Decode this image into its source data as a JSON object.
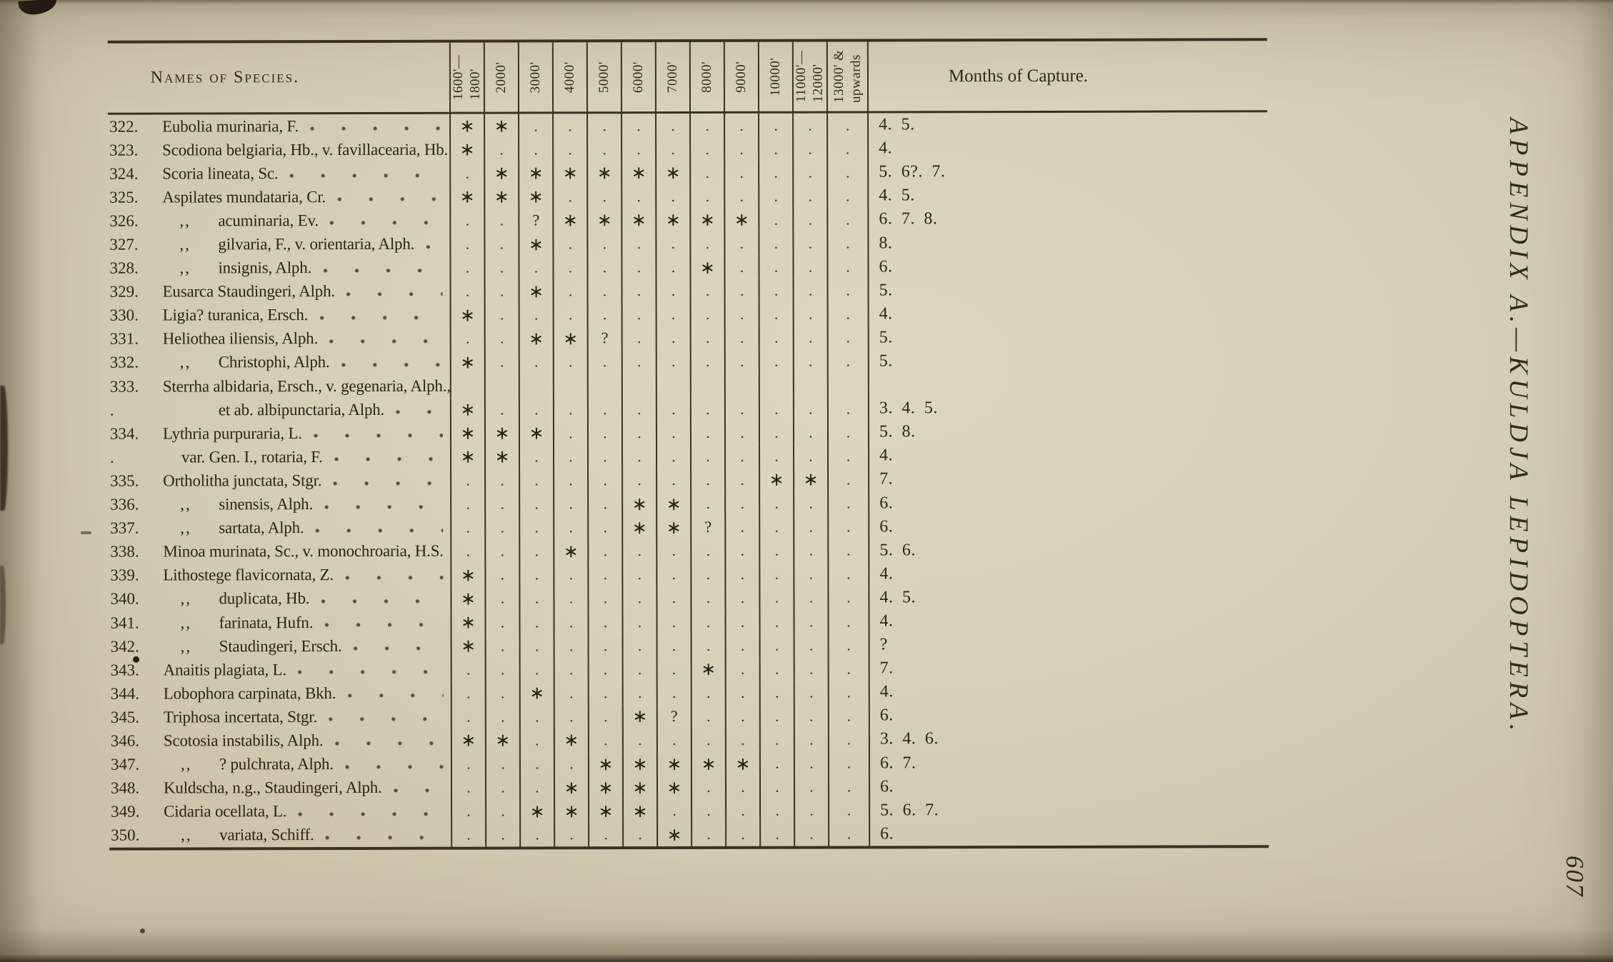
{
  "page": {
    "rotated_title": "APPENDIX A.—KULDJA LEPIDOPTERA.",
    "page_number": "607"
  },
  "table": {
    "name_header": "Names of Species.",
    "months_header": "Months of Capture.",
    "altitude_columns": [
      "1600'—\n1800'",
      "2000'",
      "3000'",
      "4000'",
      "5000'",
      "6000'",
      "7000'",
      "8000'",
      "9000'",
      "10000'",
      "11000'—\n12000'",
      "13000' &\nupwards"
    ],
    "symbols": {
      "star": "∗",
      "dot": ".",
      "question": "?"
    },
    "rows": [
      {
        "num": "322.",
        "prefix": "",
        "indent": 0,
        "name": "Eubolia murinaria, F.",
        "cells": [
          "*",
          "*",
          ".",
          ".",
          ".",
          ".",
          ".",
          ".",
          ".",
          ".",
          ".",
          "."
        ],
        "months": "4. 5."
      },
      {
        "num": "323.",
        "prefix": "",
        "indent": 0,
        "name": "Scodiona belgiaria, Hb., v. favillacearia, Hb.",
        "cells": [
          "*",
          ".",
          ".",
          ".",
          ".",
          ".",
          ".",
          ".",
          ".",
          ".",
          ".",
          "."
        ],
        "months": "4."
      },
      {
        "num": "324.",
        "prefix": "",
        "indent": 0,
        "name": "Scoria lineata, Sc.",
        "cells": [
          ".",
          "*",
          "*",
          "*",
          "*",
          "*",
          "*",
          ".",
          ".",
          ".",
          ".",
          "."
        ],
        "months": "5. 6?. 7."
      },
      {
        "num": "325.",
        "prefix": "",
        "indent": 0,
        "name": "Aspilates mundataria, Cr.",
        "cells": [
          "*",
          "*",
          "*",
          ".",
          ".",
          ".",
          ".",
          ".",
          ".",
          ".",
          ".",
          "."
        ],
        "months": "4. 5."
      },
      {
        "num": "326.",
        "prefix": ",,",
        "indent": 0,
        "name": "acuminaria, Ev.",
        "cells": [
          ".",
          ".",
          "?",
          "*",
          "*",
          "*",
          "*",
          "*",
          "*",
          ".",
          ".",
          "."
        ],
        "months": "6. 7. 8."
      },
      {
        "num": "327.",
        "prefix": ",,",
        "indent": 0,
        "name": "gilvaria, F., v. orientaria, Alph.",
        "cells": [
          ".",
          ".",
          "*",
          ".",
          ".",
          ".",
          ".",
          ".",
          ".",
          ".",
          ".",
          "."
        ],
        "months": "8."
      },
      {
        "num": "328.",
        "prefix": ",,",
        "indent": 0,
        "name": "insignis, Alph.",
        "cells": [
          ".",
          ".",
          ".",
          ".",
          ".",
          ".",
          ".",
          "*",
          ".",
          ".",
          ".",
          "."
        ],
        "months": "6."
      },
      {
        "num": "329.",
        "prefix": "",
        "indent": 0,
        "name": "Eusarca Staudingeri, Alph.",
        "cells": [
          ".",
          ".",
          "*",
          ".",
          ".",
          ".",
          ".",
          ".",
          ".",
          ".",
          ".",
          "."
        ],
        "months": "5."
      },
      {
        "num": "330.",
        "prefix": "",
        "indent": 0,
        "name": "Ligia? turanica, Ersch.",
        "cells": [
          "*",
          ".",
          ".",
          ".",
          ".",
          ".",
          ".",
          ".",
          ".",
          ".",
          ".",
          "."
        ],
        "months": "4."
      },
      {
        "num": "331.",
        "prefix": "",
        "indent": 0,
        "name": "Heliothea iliensis, Alph.",
        "cells": [
          ".",
          ".",
          "*",
          "*",
          "?",
          ".",
          ".",
          ".",
          ".",
          ".",
          ".",
          "."
        ],
        "months": "5."
      },
      {
        "num": "332.",
        "prefix": ",,",
        "indent": 0,
        "name": "Christophi, Alph.",
        "cells": [
          "*",
          ".",
          ".",
          ".",
          ".",
          ".",
          ".",
          ".",
          ".",
          ".",
          ".",
          "."
        ],
        "months": "5."
      },
      {
        "num": "333.",
        "prefix": "",
        "indent": 0,
        "name": "Sterrha albidaria, Ersch., v. gegenaria, Alph.,",
        "cells": [
          "",
          "",
          "",
          "",
          "",
          "",
          "",
          "",
          "",
          "",
          "",
          ""
        ],
        "months": ""
      },
      {
        "num": ".",
        "prefix": "",
        "indent": 2,
        "name": "et ab. albipunctaria, Alph.",
        "cells": [
          "*",
          ".",
          ".",
          ".",
          ".",
          ".",
          ".",
          ".",
          ".",
          ".",
          ".",
          "."
        ],
        "months": "3. 4. 5."
      },
      {
        "num": "334.",
        "prefix": "",
        "indent": 0,
        "name": "Lythria purpuraria, L.",
        "cells": [
          "*",
          "*",
          "*",
          ".",
          ".",
          ".",
          ".",
          ".",
          ".",
          ".",
          ".",
          "."
        ],
        "months": "5. 8."
      },
      {
        "num": ".",
        "prefix": "",
        "indent": 1,
        "name": "var. Gen. I., rotaria, F.",
        "cells": [
          "*",
          "*",
          ".",
          ".",
          ".",
          ".",
          ".",
          ".",
          ".",
          ".",
          ".",
          "."
        ],
        "months": "4."
      },
      {
        "num": "335.",
        "prefix": "",
        "indent": 0,
        "name": "Ortholitha junctata, Stgr.",
        "cells": [
          ".",
          ".",
          ".",
          ".",
          ".",
          ".",
          ".",
          ".",
          ".",
          "*",
          "*",
          "."
        ],
        "months": "7."
      },
      {
        "num": "336.",
        "prefix": ",,",
        "indent": 0,
        "name": "sinensis, Alph.",
        "cells": [
          ".",
          ".",
          ".",
          ".",
          ".",
          "*",
          "*",
          ".",
          ".",
          ".",
          ".",
          "."
        ],
        "months": "6."
      },
      {
        "num": "337.",
        "prefix": ",,",
        "indent": 0,
        "name": "sartata, Alph.",
        "cells": [
          ".",
          ".",
          ".",
          ".",
          ".",
          "*",
          "*",
          "?",
          ".",
          ".",
          ".",
          "."
        ],
        "months": "6."
      },
      {
        "num": "338.",
        "prefix": "",
        "indent": 0,
        "name": "Minoa murinata, Sc., v. monochroaria, H.S.",
        "cells": [
          ".",
          ".",
          ".",
          "*",
          ".",
          ".",
          ".",
          ".",
          ".",
          ".",
          ".",
          "."
        ],
        "months": "5. 6."
      },
      {
        "num": "339.",
        "prefix": "",
        "indent": 0,
        "name": "Lithostege flavicornata, Z.",
        "cells": [
          "*",
          ".",
          ".",
          ".",
          ".",
          ".",
          ".",
          ".",
          ".",
          ".",
          ".",
          "."
        ],
        "months": "4."
      },
      {
        "num": "340.",
        "prefix": ",,",
        "indent": 0,
        "name": "duplicata, Hb.",
        "cells": [
          "*",
          ".",
          ".",
          ".",
          ".",
          ".",
          ".",
          ".",
          ".",
          ".",
          ".",
          "."
        ],
        "months": "4. 5."
      },
      {
        "num": "341.",
        "prefix": ",,",
        "indent": 0,
        "name": "farinata, Hufn.",
        "cells": [
          "*",
          ".",
          ".",
          ".",
          ".",
          ".",
          ".",
          ".",
          ".",
          ".",
          ".",
          "."
        ],
        "months": "4."
      },
      {
        "num": "342.",
        "prefix": ",,",
        "indent": 0,
        "name": "Staudingeri, Ersch.",
        "cells": [
          "*",
          ".",
          ".",
          ".",
          ".",
          ".",
          ".",
          ".",
          ".",
          ".",
          ".",
          "."
        ],
        "months": "?"
      },
      {
        "num": "343.",
        "prefix": "",
        "indent": 0,
        "name": "Anaitis plagiata, L.",
        "cells": [
          ".",
          ".",
          ".",
          ".",
          ".",
          ".",
          ".",
          "*",
          ".",
          ".",
          ".",
          "."
        ],
        "months": "7."
      },
      {
        "num": "344.",
        "prefix": "",
        "indent": 0,
        "name": "Lobophora carpinata, Bkh.",
        "cells": [
          ".",
          ".",
          "*",
          ".",
          ".",
          ".",
          ".",
          ".",
          ".",
          ".",
          ".",
          "."
        ],
        "months": "4."
      },
      {
        "num": "345.",
        "prefix": "",
        "indent": 0,
        "name": "Triphosa incertata, Stgr.",
        "cells": [
          ".",
          ".",
          ".",
          ".",
          ".",
          "*",
          "?",
          ".",
          ".",
          ".",
          ".",
          "."
        ],
        "months": "6."
      },
      {
        "num": "346.",
        "prefix": "",
        "indent": 0,
        "name": "Scotosia instabilis, Alph.",
        "cells": [
          "*",
          "*",
          ".",
          "*",
          ".",
          ".",
          ".",
          ".",
          ".",
          ".",
          ".",
          "."
        ],
        "months": "3. 4. 6."
      },
      {
        "num": "347.",
        "prefix": ",,",
        "indent": 0,
        "name": "? pulchrata, Alph.",
        "cells": [
          ".",
          ".",
          ".",
          ".",
          "*",
          "*",
          "*",
          "*",
          "*",
          ".",
          ".",
          "."
        ],
        "months": "6. 7."
      },
      {
        "num": "348.",
        "prefix": "",
        "indent": 0,
        "name": "Kuldscha, n.g., Staudingeri, Alph.",
        "cells": [
          ".",
          ".",
          ".",
          "*",
          "*",
          "*",
          "*",
          ".",
          ".",
          ".",
          ".",
          "."
        ],
        "months": "6."
      },
      {
        "num": "349.",
        "prefix": "",
        "indent": 0,
        "name": "Cidaria ocellata, L.",
        "cells": [
          ".",
          ".",
          "*",
          "*",
          "*",
          "*",
          ".",
          ".",
          ".",
          ".",
          ".",
          "."
        ],
        "months": "5. 6. 7."
      },
      {
        "num": "350.",
        "prefix": ",,",
        "indent": 0,
        "name": "variata, Schiff.",
        "cells": [
          ".",
          ".",
          ".",
          ".",
          ".",
          ".",
          "*",
          ".",
          ".",
          ".",
          ".",
          "."
        ],
        "months": "6."
      }
    ]
  }
}
